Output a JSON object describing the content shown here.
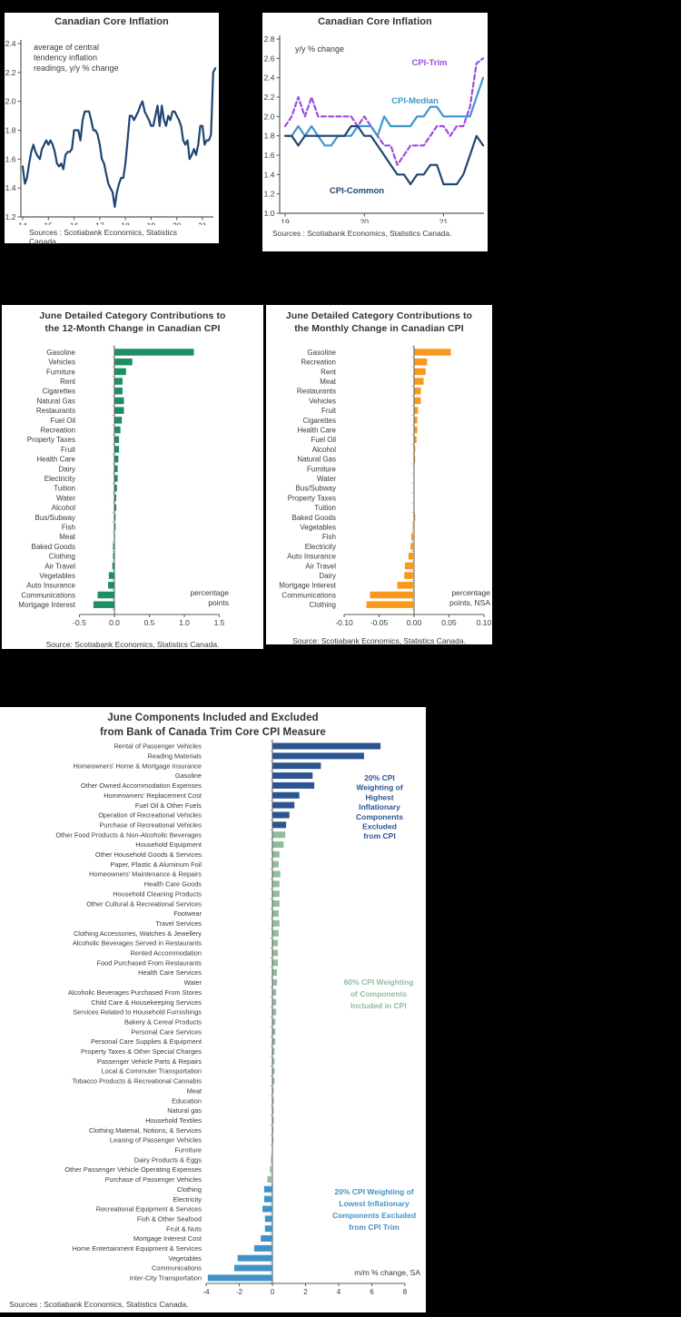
{
  "page": {
    "background": "#000000",
    "card_background": "#ffffff"
  },
  "chart_data": [
    {
      "name": "canadian-core-inflation-history",
      "type": "line",
      "title": "Canadian Core Inflation",
      "annotation": [
        "average of central",
        "tendency inflation",
        "readings, y/y % change"
      ],
      "ylim": [
        1.2,
        2.4
      ],
      "yticks": [
        "1.2",
        "1.4",
        "1.6",
        "1.8",
        "2.0",
        "2.2",
        "2.4"
      ],
      "xticks": [
        "14",
        "15",
        "16",
        "17",
        "18",
        "19",
        "20",
        "21"
      ],
      "x_period": [
        "2014-01",
        "2021-07"
      ],
      "grid": false,
      "series": [
        {
          "name": "average of central tendency inflation readings",
          "color": "#1f4571",
          "values": [
            1.55,
            1.43,
            1.47,
            1.57,
            1.65,
            1.7,
            1.65,
            1.62,
            1.6,
            1.67,
            1.7,
            1.73,
            1.7,
            1.73,
            1.7,
            1.65,
            1.57,
            1.55,
            1.57,
            1.53,
            1.63,
            1.65,
            1.65,
            1.67,
            1.8,
            1.8,
            1.8,
            1.73,
            1.87,
            1.93,
            1.93,
            1.93,
            1.87,
            1.8,
            1.8,
            1.77,
            1.7,
            1.6,
            1.57,
            1.5,
            1.43,
            1.4,
            1.37,
            1.27,
            1.37,
            1.43,
            1.47,
            1.47,
            1.57,
            1.73,
            1.9,
            1.9,
            1.87,
            1.9,
            1.93,
            1.97,
            2.0,
            1.93,
            1.9,
            1.87,
            1.83,
            1.83,
            1.9,
            1.97,
            1.83,
            1.97,
            1.87,
            1.83,
            1.9,
            1.87,
            1.93,
            1.93,
            1.9,
            1.87,
            1.83,
            1.73,
            1.7,
            1.73,
            1.6,
            1.63,
            1.67,
            1.63,
            1.7,
            1.83,
            1.83,
            1.7,
            1.73,
            1.73,
            1.77,
            2.2,
            2.23
          ]
        }
      ],
      "source": "Sources : Scotiabank Economics, Statistics Canada."
    },
    {
      "name": "canadian-core-inflation-measures",
      "type": "line",
      "title": "Canadian Core Inflation",
      "annotation": [
        "y/y % change"
      ],
      "ylim": [
        1.0,
        2.8
      ],
      "yticks": [
        "1.0",
        "1.2",
        "1.4",
        "1.6",
        "1.8",
        "2.0",
        "2.2",
        "2.4",
        "2.6",
        "2.8"
      ],
      "xticks": [
        "19",
        "20",
        "21"
      ],
      "x_period": [
        "2019-01",
        "2021-07"
      ],
      "grid": false,
      "series": [
        {
          "name": "CPI-Trim",
          "color": "#9d4be0",
          "dashed": true,
          "values": [
            1.9,
            2.0,
            2.2,
            2.0,
            2.2,
            2.0,
            2.0,
            2.0,
            2.0,
            2.0,
            2.0,
            1.9,
            2.0,
            1.9,
            1.8,
            1.7,
            1.7,
            1.5,
            1.6,
            1.7,
            1.7,
            1.7,
            1.8,
            1.9,
            1.9,
            1.8,
            1.9,
            1.9,
            2.1,
            2.55,
            2.6
          ]
        },
        {
          "name": "CPI-Median",
          "color": "#3e96cf",
          "dashed": false,
          "values": [
            1.8,
            1.8,
            1.9,
            1.8,
            1.9,
            1.8,
            1.7,
            1.7,
            1.8,
            1.8,
            1.8,
            1.9,
            1.9,
            1.9,
            1.8,
            2.0,
            1.9,
            1.9,
            1.9,
            1.9,
            2.0,
            2.0,
            2.1,
            2.1,
            2.0,
            2.0,
            2.0,
            2.0,
            2.0,
            2.2,
            2.4
          ]
        },
        {
          "name": "CPI-Common",
          "color": "#1f4571",
          "dashed": false,
          "values": [
            1.8,
            1.8,
            1.7,
            1.8,
            1.8,
            1.8,
            1.8,
            1.8,
            1.8,
            1.8,
            1.9,
            1.9,
            1.8,
            1.8,
            1.7,
            1.6,
            1.5,
            1.4,
            1.4,
            1.3,
            1.4,
            1.4,
            1.5,
            1.5,
            1.3,
            1.3,
            1.3,
            1.4,
            1.6,
            1.8,
            1.7
          ]
        }
      ],
      "source": "Sources : Scotiabank Economics, Statistics Canada."
    },
    {
      "name": "june-12-month-cpi-contributions",
      "type": "bar",
      "orientation": "horizontal",
      "title": "June Detailed Category Contributions to\nthe 12-Month Change in Canadian CPI",
      "bar_color": "#1e8f63",
      "xlim": [
        -0.5,
        1.5
      ],
      "xticks": [
        "-0.5",
        "0.0",
        "0.5",
        "1.0",
        "1.5"
      ],
      "unit_note": [
        "percentage",
        "points"
      ],
      "categories": [
        "Gasoline",
        "Vehicles",
        "Furniture",
        "Rent",
        "Cigarettes",
        "Natural Gas",
        "Restaurants",
        "Fuel Oil",
        "Recreation",
        "Property Taxes",
        "Fruit",
        "Health Care",
        "Dairy",
        "Electricity",
        "Tuition",
        "Water",
        "Alcohol",
        "Bus/Subway",
        "Fish",
        "Meat",
        "Baked Goods",
        "Clothing",
        "Air Travel",
        "Vegetables",
        "Auto Insurance",
        "Communications",
        "Mortgage Interest"
      ],
      "values": [
        1.13,
        0.25,
        0.16,
        0.11,
        0.11,
        0.13,
        0.13,
        0.1,
        0.08,
        0.06,
        0.06,
        0.05,
        0.04,
        0.04,
        0.03,
        0.02,
        0.02,
        0.01,
        0.01,
        -0.01,
        -0.02,
        -0.02,
        -0.03,
        -0.08,
        -0.09,
        -0.24,
        -0.3
      ],
      "source": "Source: Scotiabank Economics, Statistics Canada."
    },
    {
      "name": "june-monthly-cpi-contributions",
      "type": "bar",
      "orientation": "horizontal",
      "title": "June Detailed Category Contributions to\nthe Monthly Change in Canadian CPI",
      "bar_color": "#f8981d",
      "xlim": [
        -0.1,
        0.1
      ],
      "xticks": [
        "-0.10",
        "-0.05",
        "0.00",
        "0.05",
        "0.10"
      ],
      "unit_note": [
        "percentage",
        "points, NSA"
      ],
      "categories": [
        "Gasoline",
        "Recreation",
        "Rent",
        "Meat",
        "Restaurants",
        "Vehicles",
        "Fruit",
        "Cigarettes",
        "Health Care",
        "Fuel Oil",
        "Alcohol",
        "Natural Gas",
        "Furniture",
        "Water",
        "Bus/Subway",
        "Property Taxes",
        "Tuition",
        "Baked Goods",
        "Vegetables",
        "Fish",
        "Electricity",
        "Auto Insurance",
        "Air Travel",
        "Dairy",
        "Mortgage Interest",
        "Communications",
        "Clothing"
      ],
      "values": [
        0.052,
        0.018,
        0.016,
        0.013,
        0.009,
        0.009,
        0.005,
        0.004,
        0.004,
        0.003,
        0.001,
        0.001,
        0.0,
        0.0,
        0.0,
        0.0,
        0.0,
        0.001,
        -0.002,
        -0.004,
        -0.005,
        -0.008,
        -0.013,
        -0.014,
        -0.024,
        -0.063,
        -0.068
      ],
      "source": "Source: Scotiabank Economics, Statistics Canada."
    },
    {
      "name": "june-trim-core-components",
      "type": "bar",
      "orientation": "horizontal",
      "title": "June Components Included and Excluded\nfrom Bank of Canada Trim Core CPI Measure",
      "xlim": [
        -4,
        8
      ],
      "xticks": [
        "-4",
        "-2",
        "0",
        "2",
        "4",
        "6",
        "8"
      ],
      "unit_note": [
        "m/m % change, SA"
      ],
      "group_colors": {
        "excluded_high": "#2b5491",
        "included": "#8fbd9e",
        "excluded_low": "#4193c7"
      },
      "categories": [
        "Rental of Passenger Vehicles",
        "Reading Materials",
        "Homeowners' Home & Mortgage Insurance",
        "Gasoline",
        "Other Owned Accommodation Expenses",
        "Homeowners' Replacement Cost",
        "Fuel Oil & Other Fuels",
        "Operation of Recreational Vehicles",
        "Purchase of Recreational Vehicles",
        "Other Food Products & Non-Alcoholic Beverages",
        "Household Equipment",
        "Other Household Goods & Services",
        "Paper, Plastic & Aluminum Foil",
        "Homeowners' Maintenance & Repairs",
        "Health Care Goods",
        "Household Cleaning Products",
        "Other Cultural & Recreational Services",
        "Footwear",
        "Travel Services",
        "Clothing Accessories, Watches & Jewellery",
        "Alcoholic Beverages Served in Restaurants",
        "Rented Accommodation",
        "Food Purchased From Restaurants",
        "Health Care Services",
        "Water",
        "Alcoholic Beverages Purchased From Stores",
        "Child Care & Housekeeping Services",
        "Services Related to Household Furnishings",
        "Bakery & Cereal Products",
        "Personal Care Services",
        "Personal Care Supplies & Equipment",
        "Property Taxes & Other Special Charges",
        "Passenger Vehicle Parts & Repairs",
        "Local & Commuter Transportation",
        "Tobacco Products & Recreational Cannabis",
        "Meat",
        "Education",
        "Natural gas",
        "Household Textiles",
        "Clothing Material, Notions, & Services",
        "Leasing of Passenger Vehicles",
        "Furniture",
        "Dairy Products & Eggs",
        "Other Passenger Vehicle Operating Expenses",
        "Purchase of Passenger Vehicles",
        "Clothing",
        "Electricity",
        "Recreational Equipment & Services",
        "Fish & Other Seafood",
        "Fruit & Nuts",
        "Mortgage Interest Cost",
        "Home Entertainment Equipment & Services",
        "Vegetables",
        "Communications",
        "Inter-City Transportation"
      ],
      "values": [
        6.5,
        5.5,
        2.9,
        2.4,
        2.5,
        1.6,
        1.3,
        1.0,
        0.8,
        0.75,
        0.65,
        0.4,
        0.35,
        0.45,
        0.4,
        0.4,
        0.4,
        0.35,
        0.4,
        0.35,
        0.3,
        0.3,
        0.3,
        0.25,
        0.25,
        0.2,
        0.2,
        0.2,
        0.15,
        0.15,
        0.15,
        0.1,
        0.1,
        0.1,
        0.1,
        0.05,
        0.05,
        0.05,
        0.05,
        0.03,
        0.03,
        0.0,
        -0.1,
        -0.15,
        -0.3,
        -0.5,
        -0.5,
        -0.6,
        -0.45,
        -0.45,
        -0.7,
        -1.1,
        -2.1,
        -2.3,
        -3.9
      ],
      "bar_groups": [
        "excluded_high",
        "excluded_high",
        "excluded_high",
        "excluded_high",
        "excluded_high",
        "excluded_high",
        "excluded_high",
        "excluded_high",
        "excluded_high",
        "included",
        "included",
        "included",
        "included",
        "included",
        "included",
        "included",
        "included",
        "included",
        "included",
        "included",
        "included",
        "included",
        "included",
        "included",
        "included",
        "included",
        "included",
        "included",
        "included",
        "included",
        "included",
        "included",
        "included",
        "included",
        "included",
        "included",
        "included",
        "included",
        "included",
        "included",
        "included",
        "included",
        "included",
        "included",
        "included",
        "excluded_low",
        "excluded_low",
        "excluded_low",
        "excluded_low",
        "excluded_low",
        "excluded_low",
        "excluded_low",
        "excluded_low",
        "excluded_low",
        "excluded_low"
      ],
      "annotations": [
        {
          "lines": [
            "20% CPI",
            "Weighting of",
            "Highest",
            "Inflationary",
            "Components",
            "Excluded",
            "from CPI"
          ],
          "color": "#2b5491"
        },
        {
          "lines": [
            "60% CPI Weighting",
            "of Components",
            "Included in CPI"
          ],
          "color": "#8fbd9e"
        },
        {
          "lines": [
            "20% CPI Weighting of",
            "Lowest Inflationary",
            "Components Excluded",
            "from CPI Trim"
          ],
          "color": "#4193c7"
        }
      ],
      "source": "Sources : Scotiabank Economics, Statistics Canada."
    }
  ]
}
